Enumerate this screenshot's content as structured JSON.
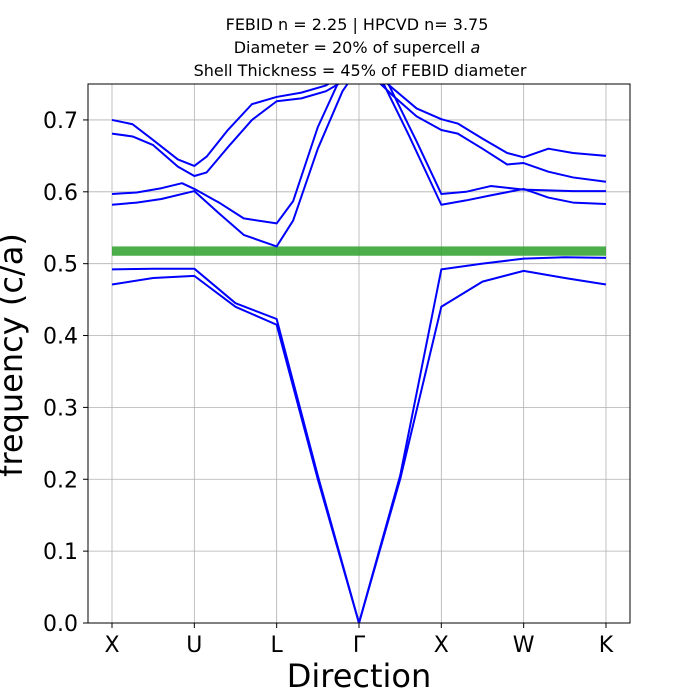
{
  "chart_data": {
    "type": "line",
    "title_lines": [
      "FEBID n = 2.25 | HPCVD n= 3.75",
      "Diameter = 20% of supercell ",
      "Shell Thickness = 45% of FEBID diameter"
    ],
    "title_italic_suffix": "a",
    "xlabel": "Direction",
    "ylabel": "frequency (c/a)",
    "x_ticks": [
      "X",
      "U",
      "L",
      "Γ",
      "X",
      "W",
      "K"
    ],
    "ylim": [
      0,
      0.75
    ],
    "y_ticks": [
      "0.0",
      "0.1",
      "0.2",
      "0.3",
      "0.4",
      "0.5",
      "0.6",
      "0.7"
    ],
    "grid": true,
    "line_color": "#0000ff",
    "band_gap": {
      "from": 0.511,
      "to": 0.524,
      "color": "#2ca02c"
    },
    "series": [
      {
        "x": [
          0,
          0.5,
          1,
          1.5,
          2,
          2.5,
          3,
          3.5,
          4,
          4.5,
          5,
          5.5,
          6
        ],
        "y": [
          0.471,
          0.48,
          0.483,
          0.44,
          0.415,
          0.2,
          0.0,
          0.2,
          0.44,
          0.475,
          0.49,
          0.48,
          0.471
        ]
      },
      {
        "x": [
          0,
          0.5,
          1,
          1.5,
          2,
          2.5,
          3,
          3.5,
          4,
          4.5,
          5,
          5.5,
          6
        ],
        "y": [
          0.492,
          0.493,
          0.493,
          0.445,
          0.423,
          0.205,
          0.0,
          0.205,
          0.492,
          0.5,
          0.507,
          0.509,
          0.508
        ]
      },
      {
        "x": [
          0,
          0.3,
          0.6,
          1,
          1.3,
          1.6,
          2,
          2.2,
          2.5,
          2.8,
          3.1,
          3.3,
          3.6,
          4,
          4.3,
          4.6,
          5,
          5.3,
          5.6,
          6
        ],
        "y": [
          0.582,
          0.585,
          0.59,
          0.601,
          0.57,
          0.54,
          0.524,
          0.56,
          0.66,
          0.74,
          0.79,
          0.75,
          0.68,
          0.582,
          0.588,
          0.595,
          0.604,
          0.592,
          0.585,
          0.583
        ]
      },
      {
        "x": [
          0,
          0.3,
          0.6,
          0.85,
          1,
          1.3,
          1.6,
          2,
          2.2,
          2.5,
          2.8,
          3.1,
          3.4,
          3.7,
          4,
          4.3,
          4.6,
          5,
          5.3,
          5.6,
          6
        ],
        "y": [
          0.597,
          0.599,
          0.605,
          0.612,
          0.604,
          0.585,
          0.563,
          0.556,
          0.587,
          0.69,
          0.765,
          0.81,
          0.74,
          0.67,
          0.597,
          0.6,
          0.608,
          0.603,
          0.602,
          0.601,
          0.601
        ]
      },
      {
        "x": [
          0,
          0.25,
          0.5,
          0.8,
          1,
          1.15,
          1.4,
          1.7,
          2,
          2.3,
          2.6,
          2.9,
          3.1,
          3.4,
          3.7,
          4,
          4.2,
          4.5,
          4.8,
          5,
          5.3,
          5.6,
          6
        ],
        "y": [
          0.7,
          0.694,
          0.672,
          0.645,
          0.636,
          0.649,
          0.685,
          0.722,
          0.732,
          0.738,
          0.748,
          0.77,
          0.775,
          0.745,
          0.716,
          0.701,
          0.695,
          0.674,
          0.654,
          0.648,
          0.66,
          0.654,
          0.65
        ]
      },
      {
        "x": [
          0,
          0.25,
          0.5,
          0.8,
          1,
          1.15,
          1.4,
          1.7,
          2,
          2.3,
          2.6,
          2.9,
          3.1,
          3.4,
          3.7,
          4,
          4.2,
          4.5,
          4.8,
          5,
          5.3,
          5.6,
          6
        ],
        "y": [
          0.681,
          0.677,
          0.665,
          0.635,
          0.622,
          0.627,
          0.661,
          0.7,
          0.726,
          0.73,
          0.74,
          0.76,
          0.768,
          0.735,
          0.705,
          0.686,
          0.681,
          0.66,
          0.638,
          0.64,
          0.628,
          0.62,
          0.614
        ]
      }
    ]
  }
}
